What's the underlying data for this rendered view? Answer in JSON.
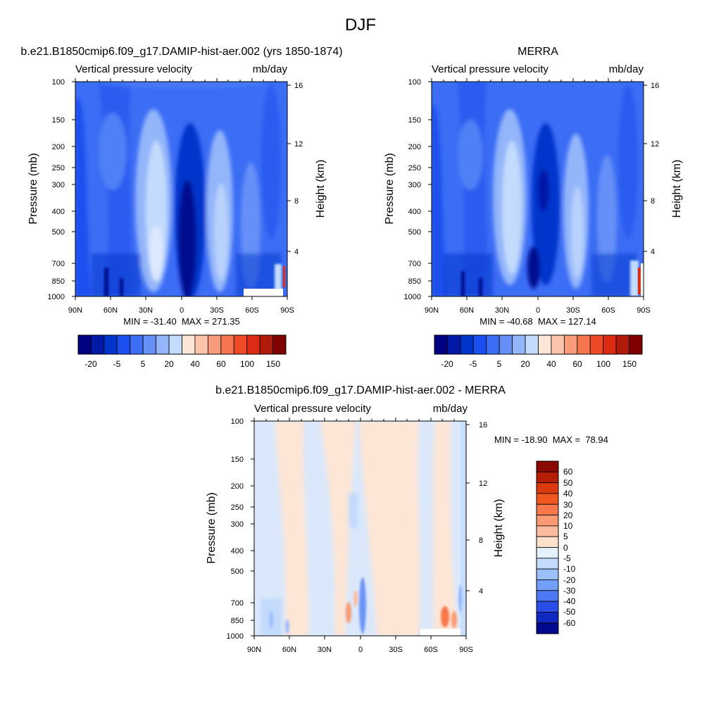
{
  "page": {
    "title": "DJF"
  },
  "chart_data": [
    {
      "type": "heatmap",
      "title": "b.e21.B1850cmip6.f09_g17.DAMIP-hist-aer.002 (yrs 1850-1874)",
      "subtitle_left": "Vertical pressure velocity",
      "subtitle_right": "mb/day",
      "ylabel": "Pressure (mb)",
      "ylabel_right": "Height (km)",
      "x_ticks": [
        "90N",
        "60N",
        "30N",
        "0",
        "30S",
        "60S",
        "90S"
      ],
      "xlim": [
        90,
        -90
      ],
      "y_ticks": [
        "100",
        "150",
        "200",
        "250",
        "300",
        "400",
        "500",
        "700",
        "850",
        "1000"
      ],
      "ylim": [
        1000,
        100
      ],
      "y_scale": "log",
      "y_right_ticks": [
        "16",
        "12",
        "8",
        "4"
      ],
      "stats": "MIN = -31.40  MAX = 271.35",
      "colorbar": {
        "orientation": "horizontal",
        "labels": [
          "-20",
          "-5",
          "5",
          "20",
          "40",
          "60",
          "100",
          "150"
        ],
        "colors": [
          "#000080",
          "#0019a6",
          "#0035cc",
          "#1a50ef",
          "#3b6df5",
          "#6690f7",
          "#93b5fa",
          "#c3dbfd",
          "#fde5d7",
          "#fcc4aa",
          "#f99c7b",
          "#f6764f",
          "#ef4a26",
          "#dc2b12",
          "#b01a0b",
          "#800000"
        ]
      }
    },
    {
      "type": "heatmap",
      "title": "MERRA",
      "subtitle_left": "Vertical pressure velocity",
      "subtitle_right": "mb/day",
      "ylabel": "Pressure (mb)",
      "ylabel_right": "Height (km)",
      "x_ticks": [
        "90N",
        "60N",
        "30N",
        "0",
        "30S",
        "60S",
        "90S"
      ],
      "xlim": [
        90,
        -90
      ],
      "y_ticks": [
        "100",
        "150",
        "200",
        "250",
        "300",
        "400",
        "500",
        "700",
        "850",
        "1000"
      ],
      "ylim": [
        1000,
        100
      ],
      "y_scale": "log",
      "y_right_ticks": [
        "16",
        "12",
        "8",
        "4"
      ],
      "stats": "MIN = -40.68  MAX = 127.14",
      "colorbar": {
        "orientation": "horizontal",
        "labels": [
          "-20",
          "-5",
          "5",
          "20",
          "40",
          "60",
          "100",
          "150"
        ],
        "colors": [
          "#000080",
          "#0019a6",
          "#0035cc",
          "#1a50ef",
          "#3b6df5",
          "#6690f7",
          "#93b5fa",
          "#c3dbfd",
          "#fde5d7",
          "#fcc4aa",
          "#f99c7b",
          "#f6764f",
          "#ef4a26",
          "#dc2b12",
          "#b01a0b",
          "#800000"
        ]
      }
    },
    {
      "type": "heatmap",
      "title": "b.e21.B1850cmip6.f09_g17.DAMIP-hist-aer.002 - MERRA",
      "subtitle_left": "Vertical pressure velocity",
      "subtitle_right": "mb/day",
      "ylabel": "Pressure (mb)",
      "ylabel_right": "Height (km)",
      "x_ticks": [
        "90N",
        "60N",
        "30N",
        "0",
        "30S",
        "60S",
        "90S"
      ],
      "xlim": [
        90,
        -90
      ],
      "y_ticks": [
        "100",
        "150",
        "200",
        "250",
        "300",
        "400",
        "500",
        "700",
        "850",
        "1000"
      ],
      "ylim": [
        1000,
        100
      ],
      "y_scale": "log",
      "y_right_ticks": [
        "16",
        "12",
        "8",
        "4"
      ],
      "stats": "MIN = -18.90  MAX =  78.94",
      "colorbar": {
        "orientation": "vertical",
        "labels": [
          "60",
          "50",
          "40",
          "30",
          "20",
          "10",
          "5",
          "0",
          "-5",
          "-10",
          "-20",
          "-30",
          "-40",
          "-50",
          "-60"
        ],
        "colors": [
          "#8b0a00",
          "#b51e05",
          "#db3a0e",
          "#f0561f",
          "#f7784a",
          "#f99a74",
          "#fbbb9e",
          "#fde0cb",
          "#e4f0fc",
          "#c3dafd",
          "#9cc0fb",
          "#729ff8",
          "#4c78f4",
          "#2a4fe8",
          "#1029c0",
          "#000a8f"
        ]
      }
    }
  ]
}
